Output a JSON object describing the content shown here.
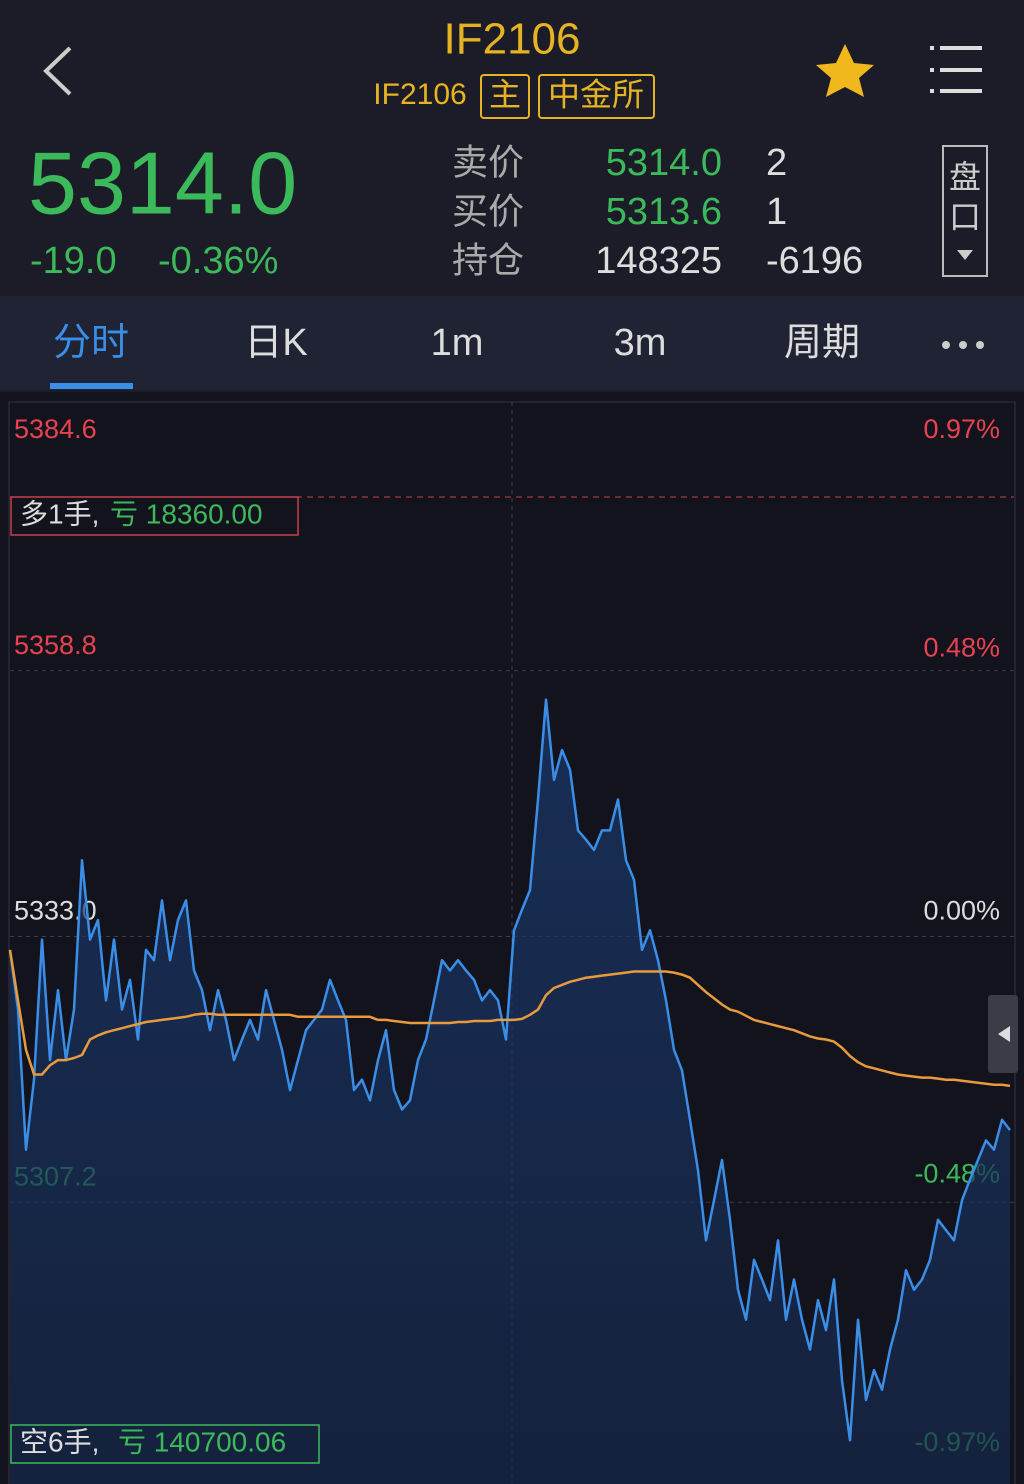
{
  "header": {
    "title": "IF2106",
    "subtitle": "IF2106",
    "badges": [
      "主",
      "中金所"
    ]
  },
  "quote": {
    "price": "5314.0",
    "change": "-19.0",
    "change_pct": "-0.36%",
    "rows": [
      [
        "卖价",
        "5314.0",
        "2"
      ],
      [
        "买价",
        "5313.6",
        "1"
      ],
      [
        "持仓",
        "148325",
        "-6196"
      ]
    ],
    "panel_button": "盘口"
  },
  "tabs": [
    "分时",
    "日K",
    "1m",
    "3m",
    "周期"
  ],
  "positions": [
    {
      "side": "多1手,",
      "pnl": "亏 18360.00"
    },
    {
      "side": "空6手,",
      "pnl": "亏 140700.06"
    }
  ],
  "chart_data": {
    "type": "line",
    "ylim": [
      5281.4,
      5384.6
    ],
    "yticks": [
      5384.6,
      5358.8,
      {
        "value": 5333,
        "label": "5333.0"
      },
      5307.2
    ],
    "y2lim": [
      -0.97,
      0.97
    ],
    "y2ticks": [
      {
        "value": 0.97,
        "label": "0.97%"
      },
      {
        "value": 0.48,
        "label": "0.48%"
      },
      {
        "value": 0,
        "label": "0.00%"
      },
      {
        "value": -0.48,
        "label": "-0.48%"
      },
      {
        "value": -0.97,
        "label": "-0.97%"
      }
    ],
    "grid": true,
    "series": [
      {
        "color": "#3a8ee6",
        "values": [
          5331.7,
          5325.9,
          5312.3,
          5319.1,
          5332.7,
          5321.0,
          5327.8,
          5321.0,
          5325.9,
          5340.4,
          5332.7,
          5334.6,
          5326.8,
          5332.7,
          5325.9,
          5328.8,
          5323.0,
          5331.7,
          5330.7,
          5336.5,
          5330.7,
          5334.6,
          5336.5,
          5329.7,
          5327.8,
          5323.9,
          5327.8,
          5324.9,
          5321.0,
          5323.0,
          5324.9,
          5323.0,
          5327.8,
          5324.9,
          5322.0,
          5318.1,
          5321.0,
          5323.9,
          5324.9,
          5325.9,
          5328.8,
          5326.8,
          5324.9,
          5318.1,
          5319.1,
          5317.1,
          5321.0,
          5323.9,
          5318.1,
          5316.2,
          5317.1,
          5321.0,
          5323.0,
          5326.8,
          5330.7,
          5329.7,
          5330.7,
          5329.7,
          5328.8,
          5326.8,
          5327.8,
          5326.8,
          5323.0,
          5333.6,
          5335.6,
          5337.5,
          5346.3,
          5356.0,
          5348.2,
          5351.1,
          5349.2,
          5343.3,
          5342.4,
          5341.4,
          5343.3,
          5343.3,
          5346.3,
          5340.4,
          5338.5,
          5331.7,
          5333.6,
          5330.7,
          5326.8,
          5322.0,
          5320.0,
          5315.2,
          5310.3,
          5303.5,
          5307.4,
          5311.3,
          5305.5,
          5298.7,
          5295.8,
          5301.6,
          5299.7,
          5297.7,
          5303.5,
          5295.8,
          5299.7,
          5295.8,
          5292.9,
          5297.7,
          5294.8,
          5299.7,
          5289.9,
          5284.1,
          5295.8,
          5288.0,
          5290.9,
          5289.0,
          5292.9,
          5295.8,
          5300.6,
          5298.7,
          5299.7,
          5301.6,
          5305.5,
          5304.5,
          5303.5,
          5307.4,
          5309.4,
          5311.3,
          5313.2,
          5312.3,
          5315.2,
          5314.2
        ]
      },
      {
        "color": "#e89a3c",
        "values": [
          5331.7,
          5326.8,
          5322.0,
          5319.6,
          5319.6,
          5320.5,
          5321.0,
          5321.0,
          5321.2,
          5321.5,
          5323.0,
          5323.4,
          5323.7,
          5323.9,
          5324.1,
          5324.3,
          5324.5,
          5324.7,
          5324.8,
          5324.9,
          5325.0,
          5325.1,
          5325.2,
          5325.4,
          5325.5,
          5325.5,
          5325.4,
          5325.4,
          5325.4,
          5325.4,
          5325.4,
          5325.4,
          5325.4,
          5325.4,
          5325.4,
          5325.4,
          5325.2,
          5325.2,
          5325.2,
          5325.2,
          5325.2,
          5325.2,
          5325.2,
          5325.2,
          5325.2,
          5325.2,
          5324.9,
          5324.9,
          5324.8,
          5324.7,
          5324.6,
          5324.6,
          5324.6,
          5324.6,
          5324.6,
          5324.6,
          5324.7,
          5324.7,
          5324.8,
          5324.8,
          5324.8,
          5324.9,
          5324.9,
          5324.9,
          5325.0,
          5325.4,
          5325.9,
          5327.3,
          5328.0,
          5328.3,
          5328.6,
          5328.8,
          5329.0,
          5329.1,
          5329.2,
          5329.3,
          5329.4,
          5329.5,
          5329.6,
          5329.6,
          5329.6,
          5329.6,
          5329.6,
          5329.5,
          5329.3,
          5329.0,
          5328.3,
          5327.6,
          5327.0,
          5326.4,
          5325.9,
          5325.7,
          5325.3,
          5324.9,
          5324.7,
          5324.5,
          5324.3,
          5324.1,
          5323.9,
          5323.6,
          5323.3,
          5323.1,
          5323.0,
          5322.8,
          5322.2,
          5321.4,
          5320.8,
          5320.4,
          5320.2,
          5320.0,
          5319.8,
          5319.6,
          5319.5,
          5319.4,
          5319.3,
          5319.3,
          5319.2,
          5319.1,
          5319.1,
          5319.0,
          5318.9,
          5318.8,
          5318.7,
          5318.6,
          5318.6,
          5318.5
        ]
      }
    ]
  }
}
